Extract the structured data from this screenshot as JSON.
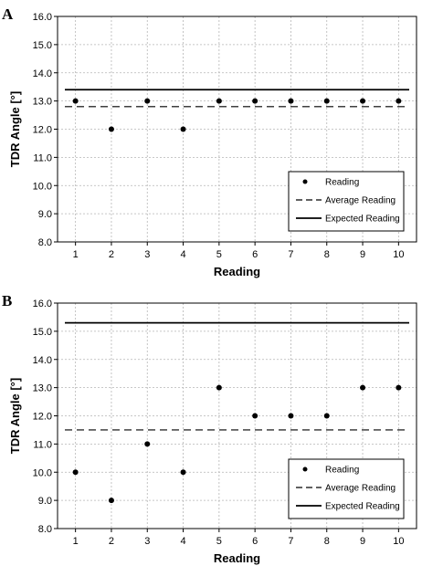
{
  "chart_data": [
    {
      "type": "scatter",
      "panel_label": "A",
      "x": [
        1,
        2,
        3,
        4,
        5,
        6,
        7,
        8,
        9,
        10
      ],
      "series": [
        {
          "name": "Reading",
          "kind": "points",
          "values": [
            13,
            12,
            13,
            12,
            13,
            13,
            13,
            13,
            13,
            13
          ]
        },
        {
          "name": "Average Reading",
          "kind": "dashed-line",
          "values": [
            12.8,
            12.8,
            12.8,
            12.8,
            12.8,
            12.8,
            12.8,
            12.8,
            12.8,
            12.8
          ]
        },
        {
          "name": "Expected Reading",
          "kind": "solid-line",
          "values": [
            13.4,
            13.4,
            13.4,
            13.4,
            13.4,
            13.4,
            13.4,
            13.4,
            13.4,
            13.4
          ]
        }
      ],
      "xlabel": "Reading",
      "ylabel": "TDR Angle [°]",
      "xticks": [
        "1",
        "2",
        "3",
        "4",
        "5",
        "6",
        "7",
        "8",
        "9",
        "10"
      ],
      "yticks": [
        "8.0",
        "9.0",
        "10.0",
        "11.0",
        "12.0",
        "13.0",
        "14.0",
        "15.0",
        "16.0"
      ],
      "ylim": [
        8,
        16
      ],
      "grid": true,
      "legend_position": "bottom-right"
    },
    {
      "type": "scatter",
      "panel_label": "B",
      "x": [
        1,
        2,
        3,
        4,
        5,
        6,
        7,
        8,
        9,
        10
      ],
      "series": [
        {
          "name": "Reading",
          "kind": "points",
          "values": [
            10,
            9,
            11,
            10,
            13,
            12,
            12,
            12,
            13,
            13
          ]
        },
        {
          "name": "Average Reading",
          "kind": "dashed-line",
          "values": [
            11.5,
            11.5,
            11.5,
            11.5,
            11.5,
            11.5,
            11.5,
            11.5,
            11.5,
            11.5
          ]
        },
        {
          "name": "Expected Reading",
          "kind": "solid-line",
          "values": [
            15.3,
            15.3,
            15.3,
            15.3,
            15.3,
            15.3,
            15.3,
            15.3,
            15.3,
            15.3
          ]
        }
      ],
      "xlabel": "Reading",
      "ylabel": "TDR Angle [°]",
      "xticks": [
        "1",
        "2",
        "3",
        "4",
        "5",
        "6",
        "7",
        "8",
        "9",
        "10"
      ],
      "yticks": [
        "8.0",
        "9.0",
        "10.0",
        "11.0",
        "12.0",
        "13.0",
        "14.0",
        "15.0",
        "16.0"
      ],
      "ylim": [
        8,
        16
      ],
      "grid": true,
      "legend_position": "bottom-right"
    }
  ]
}
